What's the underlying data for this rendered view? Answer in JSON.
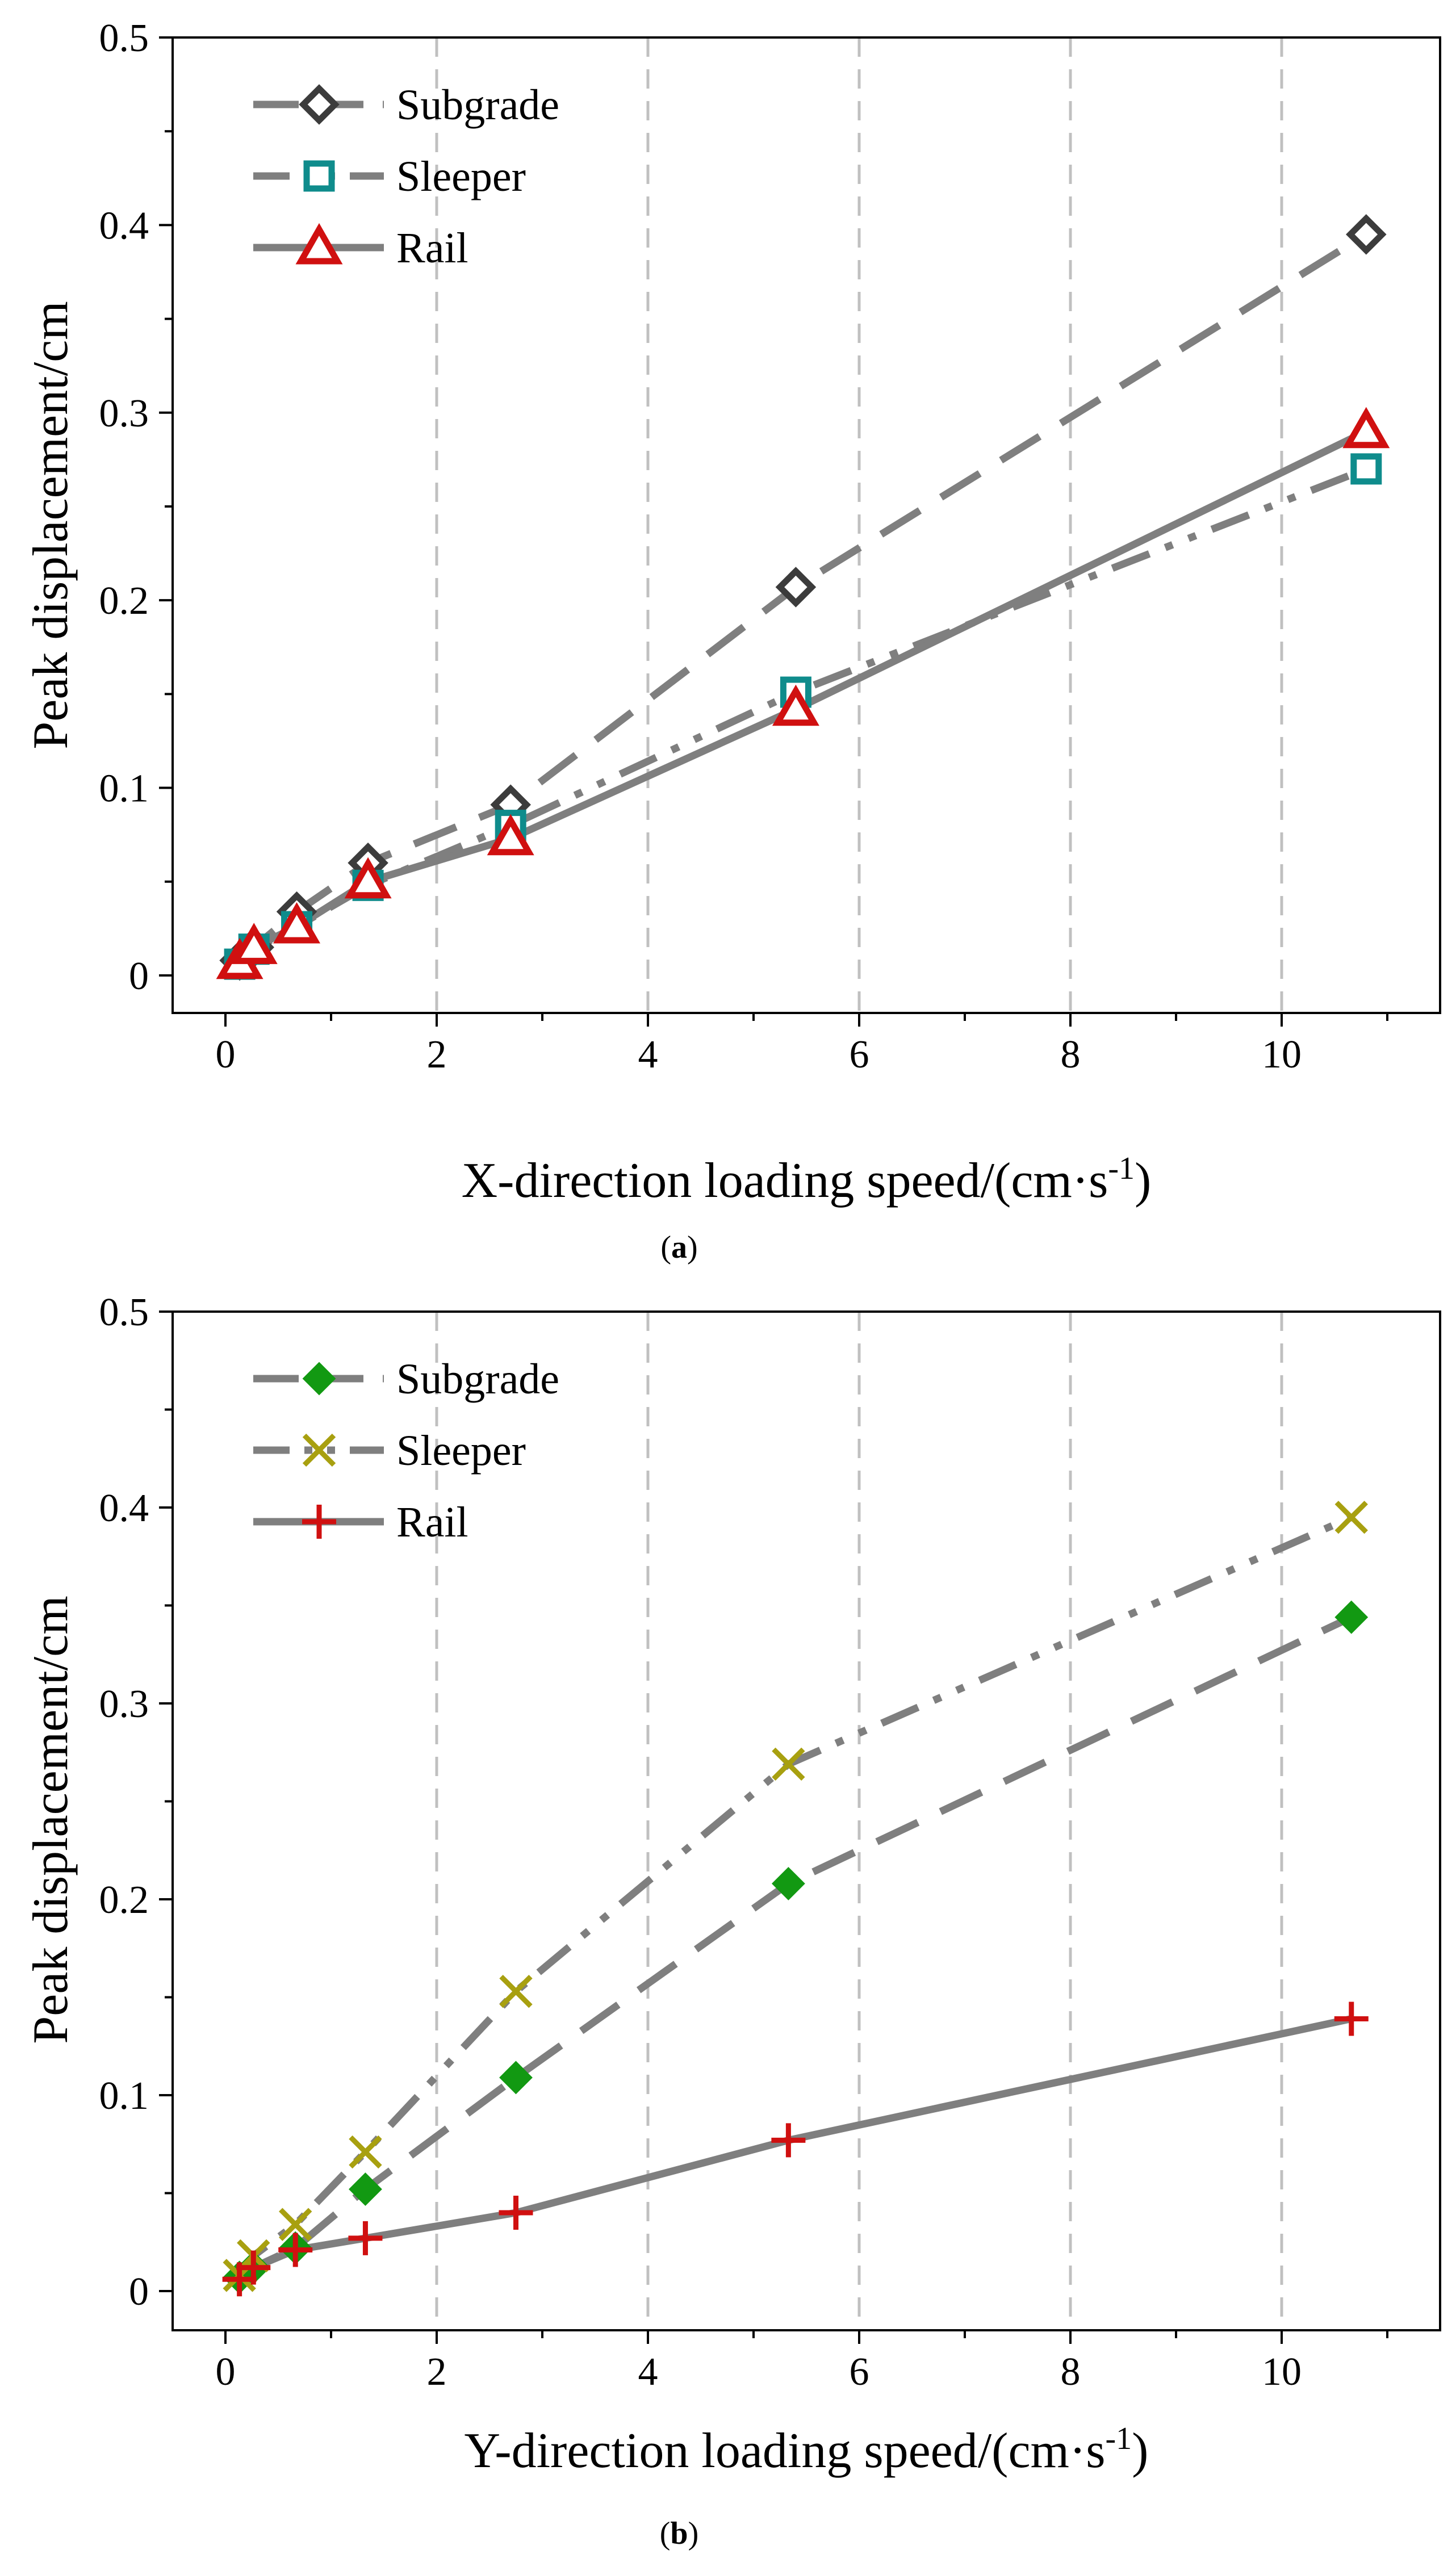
{
  "colors": {
    "line": "#7f7f7f",
    "grid": "#c0c0c0",
    "axis": "#000000",
    "subgrade_a": "#3c3c3c",
    "sleeper_a": "#0f8c8c",
    "rail_a": "#d01010",
    "subgrade_b": "#129912",
    "sleeper_b": "#a8a010",
    "rail_b": "#d01010"
  },
  "chart_data": [
    {
      "panel": "a",
      "caption": "(a)",
      "type": "line",
      "xlabel": "X-direction loading speed/(cm·s",
      "xlabel_sup": "-1",
      "xlabel_end": ")",
      "ylabel": "Peak displacement/cm",
      "xlim": [
        -0.5,
        11.5
      ],
      "ylim": [
        -0.02,
        0.5
      ],
      "xticks": [
        0,
        2,
        4,
        6,
        8,
        10
      ],
      "xtick_labels": [
        "0",
        "2",
        "4",
        "6",
        "8",
        "10"
      ],
      "yticks": [
        0,
        0.1,
        0.2,
        0.3,
        0.4,
        0.5
      ],
      "ytick_labels": [
        "0",
        "0.1",
        "0.2",
        "0.3",
        "0.4",
        "0.5"
      ],
      "grid": "vertical dashed at x ticks",
      "legend_position": "top-left",
      "series": [
        {
          "name": "Subgrade",
          "marker": "open-diamond",
          "line_style": "dashed",
          "color_key": "subgrade_a",
          "x": [
            0.135,
            0.27,
            0.675,
            1.35,
            2.7,
            5.4,
            10.8
          ],
          "y": [
            0.008,
            0.015,
            0.034,
            0.06,
            0.091,
            0.207,
            0.395
          ]
        },
        {
          "name": "Sleeper",
          "marker": "open-square",
          "line_style": "dash-dot-dot",
          "color_key": "sleeper_a",
          "x": [
            0.135,
            0.27,
            0.675,
            1.35,
            2.7,
            5.4,
            10.8
          ],
          "y": [
            0.006,
            0.014,
            0.026,
            0.048,
            0.08,
            0.151,
            0.27
          ]
        },
        {
          "name": "Rail",
          "marker": "open-triangle",
          "line_style": "solid",
          "color_key": "rail_a",
          "x": [
            0.135,
            0.27,
            0.675,
            1.35,
            2.7,
            5.4,
            10.8
          ],
          "y": [
            0.007,
            0.015,
            0.026,
            0.05,
            0.073,
            0.142,
            0.29
          ]
        }
      ]
    },
    {
      "panel": "b",
      "caption": "(b)",
      "type": "line",
      "xlabel": "Y-direction loading speed/(cm·s",
      "xlabel_sup": "-1",
      "xlabel_end": ")",
      "ylabel": "Peak displacement/cm",
      "xlim": [
        -0.5,
        11.5
      ],
      "ylim": [
        -0.02,
        0.5
      ],
      "xticks": [
        0,
        2,
        4,
        6,
        8,
        10
      ],
      "xtick_labels": [
        "0",
        "2",
        "4",
        "6",
        "8",
        "10"
      ],
      "yticks": [
        0,
        0.1,
        0.2,
        0.3,
        0.4,
        0.5
      ],
      "ytick_labels": [
        "0",
        "0.1",
        "0.2",
        "0.3",
        "0.4",
        "0.5"
      ],
      "grid": "vertical dashed at x ticks",
      "legend_position": "top-left",
      "series": [
        {
          "name": "Subgrade",
          "marker": "filled-diamond",
          "line_style": "dashed",
          "color_key": "subgrade_b",
          "x": [
            0.1325,
            0.265,
            0.6625,
            1.325,
            2.75,
            5.33,
            10.66
          ],
          "y": [
            0.007,
            0.012,
            0.022,
            0.052,
            0.109,
            0.208,
            0.344
          ]
        },
        {
          "name": "Sleeper",
          "marker": "x",
          "line_style": "dash-dot-dot",
          "color_key": "sleeper_b",
          "x": [
            0.1325,
            0.265,
            0.6625,
            1.325,
            2.75,
            5.33,
            10.66
          ],
          "y": [
            0.008,
            0.018,
            0.034,
            0.071,
            0.153,
            0.269,
            0.395
          ]
        },
        {
          "name": "Rail",
          "marker": "plus",
          "line_style": "solid",
          "color_key": "rail_b",
          "x": [
            0.1325,
            0.265,
            0.6625,
            1.325,
            2.75,
            5.33,
            10.66
          ],
          "y": [
            0.006,
            0.012,
            0.021,
            0.027,
            0.04,
            0.077,
            0.139
          ]
        }
      ]
    }
  ]
}
